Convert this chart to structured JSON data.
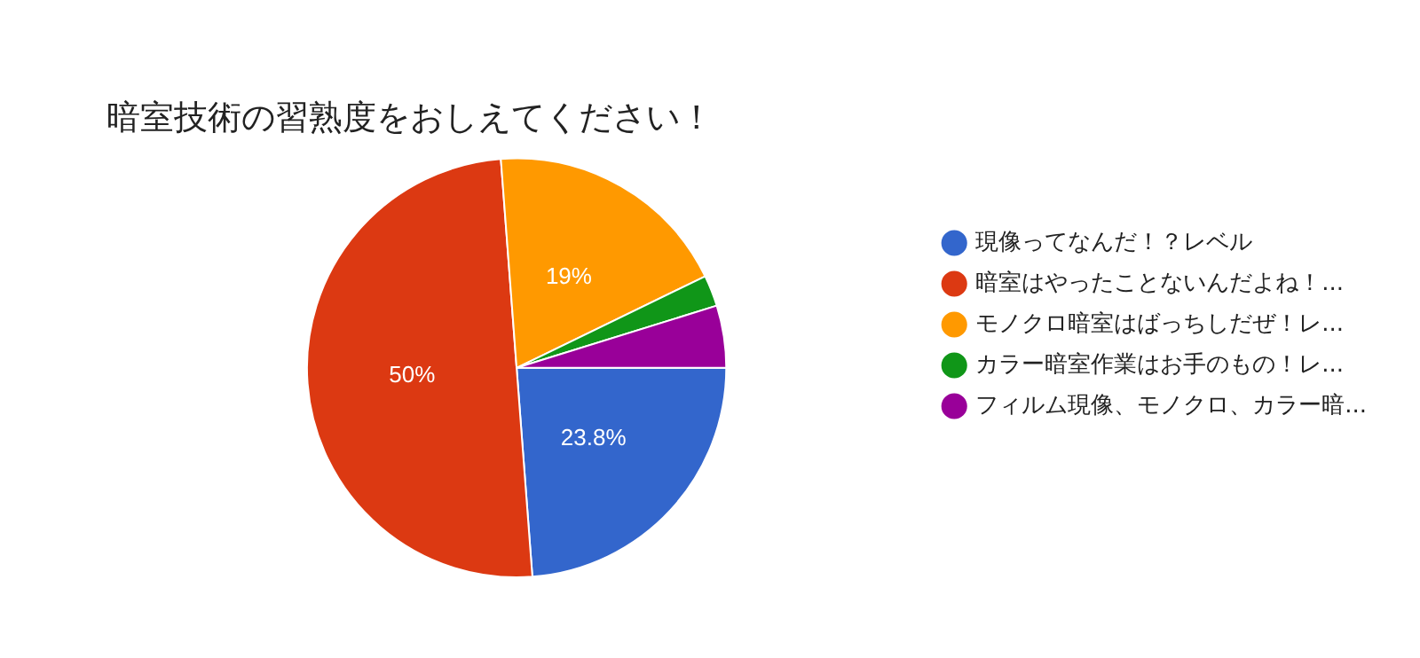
{
  "chart_data": {
    "type": "pie",
    "title": "暗室技術の習熟度をおしえてください！",
    "categories": [
      "現像ってなんだ！？レベル",
      "暗室はやったことないんだよね！...",
      "モノクロ暗室はばっちしだぜ！レ...",
      "カラー暗室作業はお手のもの！レ...",
      "フィルム現像、モノクロ、カラー暗..."
    ],
    "values": [
      23.8,
      50,
      19,
      2.4,
      4.8
    ],
    "colors": [
      "#3366cc",
      "#dc3912",
      "#ff9900",
      "#109618",
      "#990099"
    ],
    "value_labels": [
      "23.8%",
      "50%",
      "19%",
      null,
      null
    ],
    "legend": "right"
  }
}
